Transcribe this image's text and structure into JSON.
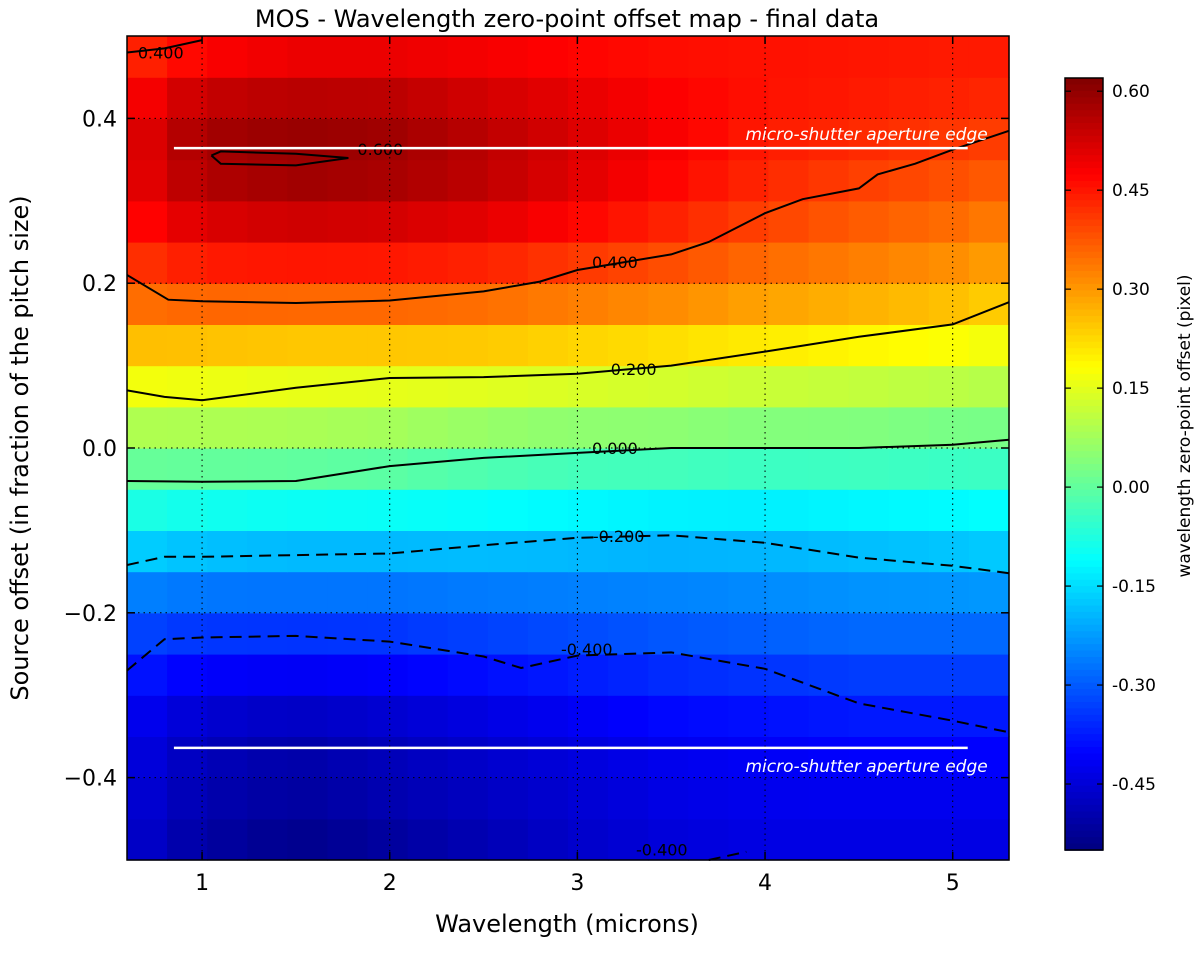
{
  "chart_data": {
    "type": "heatmap",
    "title": "MOS - Wavelength zero-point offset map - final data",
    "xlabel": "Wavelength (microns)",
    "ylabel": "Source offset (in fraction of the pitch size)",
    "xlim": [
      0.6,
      5.3
    ],
    "ylim": [
      -0.5,
      0.5
    ],
    "xticks": [
      1,
      2,
      3,
      4,
      5
    ],
    "yticks": [
      -0.4,
      -0.2,
      0.0,
      0.2,
      0.4
    ],
    "xtick_labels": [
      "1",
      "2",
      "3",
      "4",
      "5"
    ],
    "ytick_labels": [
      "−0.4",
      "−0.2",
      "0.0",
      "0.2",
      "0.4"
    ],
    "grid": "dotted",
    "colormap": "jet",
    "colorbar": {
      "label": "wavelength zero-point offset (pixel)",
      "vmin": -0.55,
      "vmax": 0.62,
      "ticks": [
        0.6,
        0.45,
        0.3,
        0.15,
        0.0,
        -0.15,
        -0.3,
        -0.45
      ],
      "tick_labels": [
        "0.60",
        "0.45",
        "0.30",
        "0.15",
        "0.00",
        "-0.15",
        "-0.30",
        "-0.45"
      ]
    },
    "field_model": {
      "wavelength_nodes": [
        0.6,
        1.0,
        1.5,
        2.0,
        2.5,
        3.0,
        3.5,
        4.0,
        4.5,
        5.0,
        5.3
      ],
      "source_offset_nodes": [
        -0.5,
        -0.45,
        -0.36,
        -0.3,
        -0.2,
        -0.1,
        0.0,
        0.1,
        0.2,
        0.3,
        0.36,
        0.4,
        0.45,
        0.5
      ],
      "values": [
        [
          -0.46,
          -0.52,
          -0.55,
          -0.53,
          -0.5,
          -0.47,
          -0.45,
          -0.44,
          -0.44,
          -0.44,
          -0.44
        ],
        [
          -0.45,
          -0.5,
          -0.52,
          -0.5,
          -0.48,
          -0.46,
          -0.44,
          -0.43,
          -0.43,
          -0.43,
          -0.43
        ],
        [
          -0.43,
          -0.48,
          -0.5,
          -0.48,
          -0.46,
          -0.44,
          -0.42,
          -0.41,
          -0.4,
          -0.4,
          -0.4
        ],
        [
          -0.4,
          -0.44,
          -0.45,
          -0.44,
          -0.42,
          -0.4,
          -0.38,
          -0.37,
          -0.36,
          -0.36,
          -0.36
        ],
        [
          -0.3,
          -0.31,
          -0.31,
          -0.31,
          -0.3,
          -0.29,
          -0.28,
          -0.27,
          -0.26,
          -0.26,
          -0.26
        ],
        [
          -0.12,
          -0.14,
          -0.15,
          -0.15,
          -0.15,
          -0.16,
          -0.17,
          -0.17,
          -0.16,
          -0.15,
          -0.14
        ],
        [
          0.05,
          0.05,
          0.05,
          0.04,
          0.02,
          0.01,
          0.01,
          0.0,
          0.0,
          -0.01,
          -0.01
        ],
        [
          0.21,
          0.2,
          0.19,
          0.19,
          0.19,
          0.18,
          0.17,
          0.16,
          0.15,
          0.14,
          0.13
        ],
        [
          0.39,
          0.41,
          0.41,
          0.41,
          0.4,
          0.38,
          0.36,
          0.33,
          0.31,
          0.29,
          0.27
        ],
        [
          0.48,
          0.55,
          0.57,
          0.56,
          0.54,
          0.5,
          0.46,
          0.42,
          0.39,
          0.37,
          0.35
        ],
        [
          0.5,
          0.58,
          0.6,
          0.59,
          0.56,
          0.52,
          0.48,
          0.44,
          0.42,
          0.4,
          0.39
        ],
        [
          0.48,
          0.57,
          0.58,
          0.57,
          0.54,
          0.51,
          0.48,
          0.45,
          0.44,
          0.43,
          0.42
        ],
        [
          0.45,
          0.51,
          0.53,
          0.53,
          0.51,
          0.49,
          0.47,
          0.46,
          0.45,
          0.44,
          0.44
        ],
        [
          0.4,
          0.44,
          0.46,
          0.46,
          0.46,
          0.45,
          0.45,
          0.45,
          0.45,
          0.45,
          0.45
        ]
      ]
    },
    "contours": [
      {
        "level": 0.6,
        "label": "0.600",
        "style": "solid",
        "points": [
          [
            1.05,
            0.355
          ],
          [
            1.1,
            0.36
          ],
          [
            1.5,
            0.357
          ],
          [
            1.78,
            0.352
          ],
          [
            1.5,
            0.343
          ],
          [
            1.1,
            0.345
          ],
          [
            1.05,
            0.355
          ]
        ],
        "label_at": [
          1.95,
          0.363
        ]
      },
      {
        "level": 0.4,
        "label": "0.400",
        "style": "solid",
        "points": [
          [
            0.6,
            0.48
          ],
          [
            0.8,
            0.485
          ],
          [
            1.0,
            0.495
          ]
        ],
        "label_at": [
          0.78,
          0.48
        ]
      },
      {
        "level": 0.4,
        "label": "0.400",
        "style": "solid",
        "points": [
          [
            0.6,
            0.21
          ],
          [
            0.82,
            0.18
          ],
          [
            1.0,
            0.178
          ],
          [
            1.5,
            0.176
          ],
          [
            2.0,
            0.179
          ],
          [
            2.5,
            0.19
          ],
          [
            2.8,
            0.202
          ],
          [
            3.0,
            0.216
          ],
          [
            3.5,
            0.235
          ],
          [
            3.7,
            0.25
          ],
          [
            4.0,
            0.285
          ],
          [
            4.2,
            0.302
          ],
          [
            4.5,
            0.315
          ],
          [
            4.6,
            0.332
          ],
          [
            4.8,
            0.345
          ],
          [
            5.0,
            0.362
          ],
          [
            5.3,
            0.385
          ]
        ],
        "label_at": [
          3.2,
          0.226
        ]
      },
      {
        "level": 0.2,
        "label": "0.200",
        "style": "solid",
        "points": [
          [
            0.6,
            0.07
          ],
          [
            0.8,
            0.062
          ],
          [
            1.0,
            0.058
          ],
          [
            1.5,
            0.073
          ],
          [
            2.0,
            0.085
          ],
          [
            2.5,
            0.086
          ],
          [
            3.0,
            0.09
          ],
          [
            3.5,
            0.1
          ],
          [
            4.0,
            0.117
          ],
          [
            4.5,
            0.135
          ],
          [
            5.0,
            0.15
          ],
          [
            5.3,
            0.177
          ]
        ],
        "label_at": [
          3.3,
          0.096
        ]
      },
      {
        "level": 0.0,
        "label": "0.000",
        "style": "solid",
        "points": [
          [
            0.6,
            -0.04
          ],
          [
            1.0,
            -0.041
          ],
          [
            1.5,
            -0.04
          ],
          [
            2.0,
            -0.022
          ],
          [
            2.5,
            -0.012
          ],
          [
            3.0,
            -0.006
          ],
          [
            3.5,
            0.0
          ],
          [
            4.0,
            0.0
          ],
          [
            4.5,
            0.0
          ],
          [
            5.0,
            0.004
          ],
          [
            5.3,
            0.01
          ]
        ],
        "label_at": [
          3.2,
          0.0
        ]
      },
      {
        "level": -0.2,
        "label": "-0.200",
        "style": "dashed",
        "points": [
          [
            0.6,
            -0.142
          ],
          [
            0.8,
            -0.132
          ],
          [
            1.0,
            -0.132
          ],
          [
            1.5,
            -0.13
          ],
          [
            2.0,
            -0.128
          ],
          [
            2.5,
            -0.118
          ],
          [
            3.0,
            -0.109
          ],
          [
            3.5,
            -0.106
          ],
          [
            4.0,
            -0.115
          ],
          [
            4.5,
            -0.133
          ],
          [
            5.0,
            -0.143
          ],
          [
            5.3,
            -0.152
          ]
        ],
        "label_at": [
          3.22,
          -0.107
        ]
      },
      {
        "level": -0.4,
        "label": "-0.400",
        "style": "dashed",
        "points": [
          [
            0.6,
            -0.27
          ],
          [
            0.8,
            -0.232
          ],
          [
            1.0,
            -0.23
          ],
          [
            1.5,
            -0.228
          ],
          [
            2.0,
            -0.235
          ],
          [
            2.5,
            -0.253
          ],
          [
            2.7,
            -0.267
          ],
          [
            3.0,
            -0.252
          ],
          [
            3.5,
            -0.248
          ],
          [
            4.0,
            -0.268
          ],
          [
            4.5,
            -0.31
          ],
          [
            5.0,
            -0.331
          ],
          [
            5.3,
            -0.345
          ]
        ],
        "label_at": [
          3.05,
          -0.244
        ]
      },
      {
        "level": -0.4,
        "label": "-0.400",
        "style": "dashed",
        "points": [
          [
            3.7,
            -0.5
          ],
          [
            3.9,
            -0.49
          ]
        ],
        "label_at": [
          3.45,
          -0.487
        ]
      }
    ],
    "aperture_edges": [
      {
        "label": "micro-shutter aperture edge",
        "y": 0.364,
        "x_range": [
          0.85,
          5.08
        ],
        "label_position": "above-right"
      },
      {
        "label": "micro-shutter aperture edge",
        "y": -0.364,
        "x_range": [
          0.85,
          5.08
        ],
        "label_position": "below-right"
      }
    ]
  }
}
